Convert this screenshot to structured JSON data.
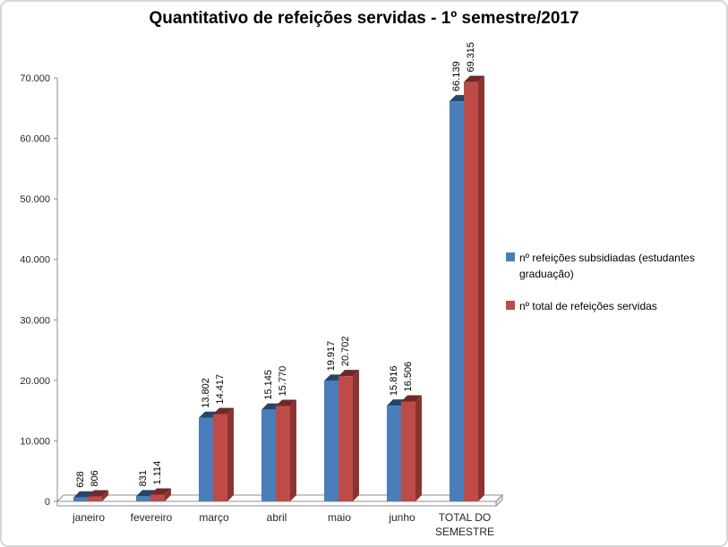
{
  "title": "Quantitativo de refeições servidas - 1º semestre/2017",
  "chart_data": {
    "type": "bar",
    "style": "3d-clustered-column",
    "title": "Quantitativo de refeições servidas - 1º semestre/2017",
    "categories": [
      "janeiro",
      "fevereiro",
      "março",
      "abril",
      "maio",
      "junho",
      "TOTAL DO SEMESTRE"
    ],
    "category_label_lines": [
      [
        "janeiro"
      ],
      [
        "fevereiro"
      ],
      [
        "março"
      ],
      [
        "abril"
      ],
      [
        "maio"
      ],
      [
        "junho"
      ],
      [
        "TOTAL DO",
        "SEMESTRE"
      ]
    ],
    "series": [
      {
        "name": "nº refeições subsidiadas (estudantes graduação)",
        "color": "#4A7EBB",
        "color_side": "#2E5984",
        "color_top": "#24466B",
        "values": [
          628,
          831,
          13802,
          15145,
          19917,
          15816,
          66139
        ],
        "value_labels": [
          "628",
          "831",
          "13.802",
          "15.145",
          "19.917",
          "15.816",
          "66.139"
        ]
      },
      {
        "name": "nº total de refeições servidas",
        "color": "#BE4B48",
        "color_side": "#8A3431",
        "color_top": "#6E2A28",
        "values": [
          806,
          1114,
          14417,
          15770,
          20702,
          16506,
          69315
        ],
        "value_labels": [
          "806",
          "1.114",
          "14.417",
          "15.770",
          "20.702",
          "16.506",
          "69.315"
        ]
      }
    ],
    "xlabel": "",
    "ylabel": "",
    "ylim": [
      0,
      70000
    ],
    "yticks": [
      {
        "label": "70.000",
        "value": 70000
      },
      {
        "label": "60.000",
        "value": 60000
      },
      {
        "label": "50.000",
        "value": 50000
      },
      {
        "label": "40.000",
        "value": 40000
      },
      {
        "label": "30.000",
        "value": 30000
      },
      {
        "label": "20.000",
        "value": 20000
      },
      {
        "label": "10.000",
        "value": 10000
      },
      {
        "label": "0",
        "value": 0
      }
    ],
    "grid": false,
    "legend_position": "right"
  }
}
